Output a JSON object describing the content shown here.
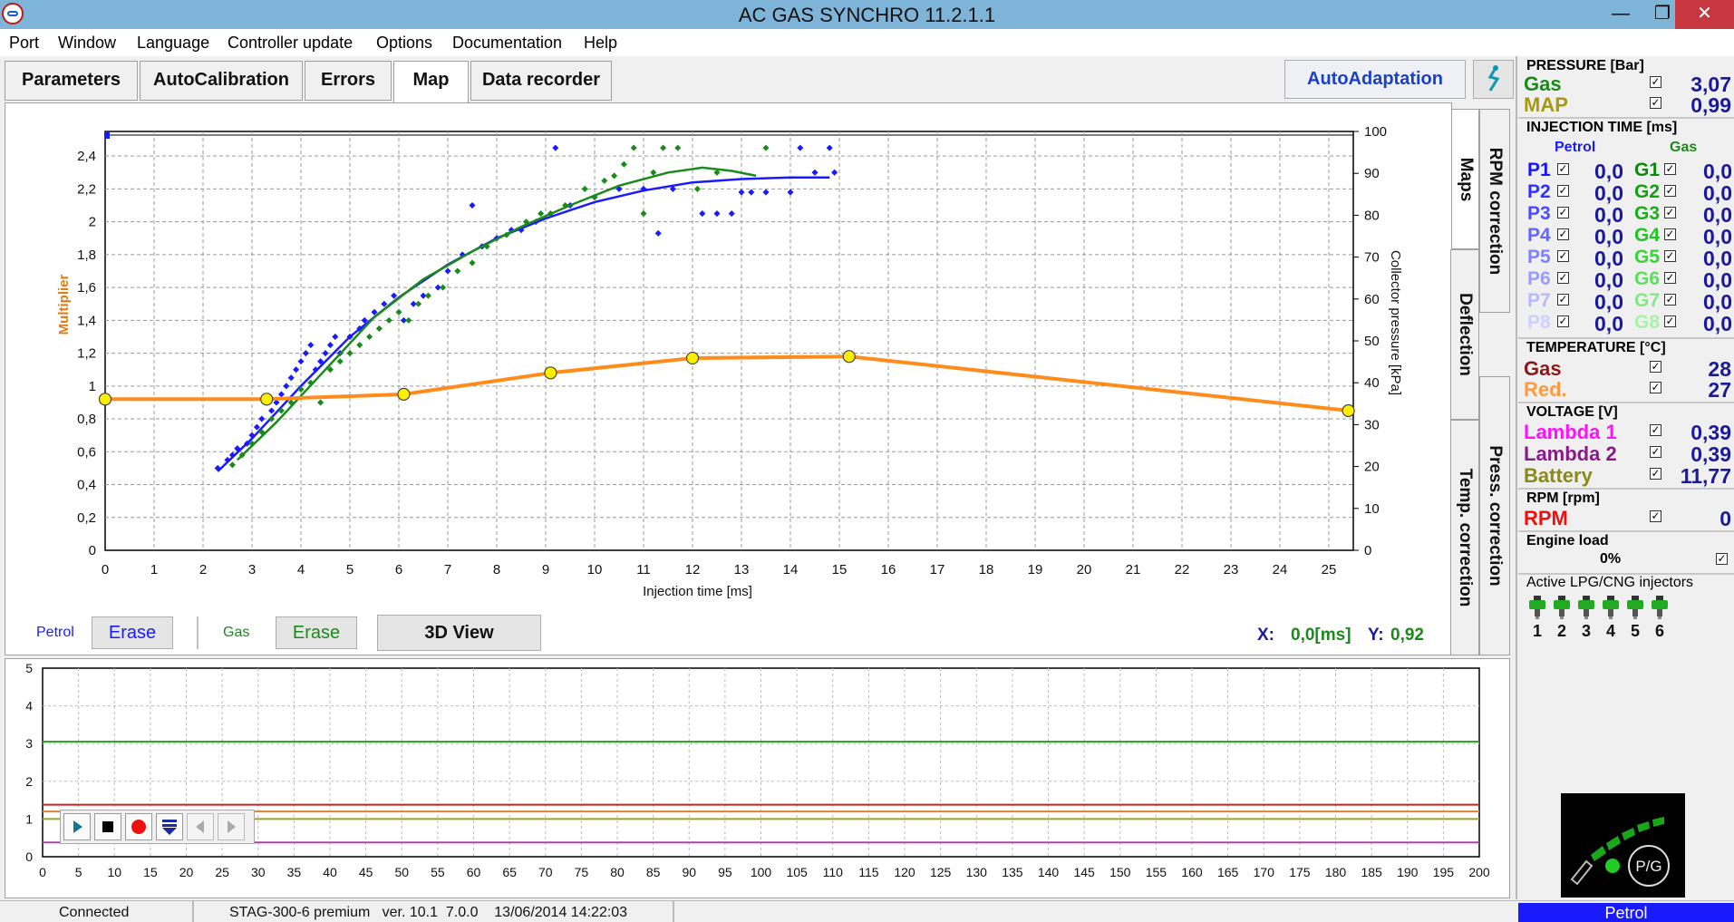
{
  "window": {
    "title": "AC GAS SYNCHRO  11.2.1.1",
    "minimize": "—",
    "maximize": "❐",
    "close": "✕"
  },
  "menu": [
    "Port",
    "Window",
    "Language",
    "Controller update",
    "Options",
    "Documentation",
    "Help"
  ],
  "tabs": {
    "parameters": "Parameters",
    "autocalibration": "AutoCalibration",
    "errors": "Errors",
    "map": "Map",
    "data_recorder": "Data recorder"
  },
  "autoadaptation": "AutoAdaptation",
  "side_tabs": {
    "maps": "Maps",
    "rpm_correction": "RPM correction",
    "deflection": "Deflection",
    "temp_correction": "Temp. correction",
    "press_correction": "Press. correction"
  },
  "map_controls": {
    "petrol_label": "Petrol",
    "petrol_erase": "Erase",
    "gas_label": "Gas",
    "gas_erase": "Erase",
    "view3d": "3D View",
    "x_label": "X:",
    "x_value": "0,0[ms]",
    "y_label": "Y:",
    "y_value": "0,92"
  },
  "pressure": {
    "header": "PRESSURE [Bar]",
    "gas_label": "Gas",
    "gas_value": "3,07",
    "map_label": "MAP",
    "map_value": "0,99"
  },
  "injection": {
    "header": "INJECTION TIME [ms]",
    "petrol_col": "Petrol",
    "gas_col": "Gas",
    "rows": [
      {
        "p": "P1",
        "pv": "0,0",
        "g": "G1",
        "gv": "0,0",
        "pc": "#1515ff",
        "gc": "#0a8a0a"
      },
      {
        "p": "P2",
        "pv": "0,0",
        "g": "G2",
        "gv": "0,0",
        "pc": "#3030ff",
        "gc": "#10a010"
      },
      {
        "p": "P3",
        "pv": "0,0",
        "g": "G3",
        "gv": "0,0",
        "pc": "#4a4aff",
        "gc": "#18b018"
      },
      {
        "p": "P4",
        "pv": "0,0",
        "g": "G4",
        "gv": "0,0",
        "pc": "#6464ff",
        "gc": "#22c422"
      },
      {
        "p": "P5",
        "pv": "0,0",
        "g": "G5",
        "gv": "0,0",
        "pc": "#8080ff",
        "gc": "#38d438"
      },
      {
        "p": "P6",
        "pv": "0,0",
        "g": "G6",
        "gv": "0,0",
        "pc": "#9c9cff",
        "gc": "#5ae05a"
      },
      {
        "p": "P7",
        "pv": "0,0",
        "g": "G7",
        "gv": "0,0",
        "pc": "#b8b8ff",
        "gc": "#80ea80"
      },
      {
        "p": "P8",
        "pv": "0,0",
        "g": "G8",
        "gv": "0,0",
        "pc": "#d0d0ff",
        "gc": "#a8f2a8"
      }
    ]
  },
  "temperature": {
    "header": "TEMPERATURE [°C]",
    "gas_label": "Gas",
    "gas_value": "28",
    "red_label": "Red.",
    "red_value": "27"
  },
  "voltage": {
    "header": "VOLTAGE [V]",
    "l1_label": "Lambda 1",
    "l1_value": "0,39",
    "l2_label": "Lambda 2",
    "l2_value": "0,39",
    "bat_label": "Battery",
    "bat_value": "11,77"
  },
  "rpm": {
    "header": "RPM [rpm]",
    "label": "RPM",
    "value": "0"
  },
  "engine_load": {
    "header": "Engine load",
    "value": "0%"
  },
  "injectors": {
    "header": "Active LPG/CNG injectors",
    "numbers": [
      "1",
      "2",
      "3",
      "4",
      "5",
      "6"
    ]
  },
  "switch": {
    "pg_label": "P/G"
  },
  "status": {
    "connection": "Connected",
    "controller": "STAG-300-6 premium   ver. 10.1  7.0.0    13/06/2014 14:22:03",
    "mode": "Petrol"
  },
  "colors": {
    "petrol": "#1a1aff",
    "gas": "#1a8a1a",
    "map_line": "#ff8c1a",
    "grid": "#999999"
  },
  "chart_data": [
    {
      "type": "scatter",
      "xlabel": "Injection time [ms]",
      "ylabel": "Multiplier",
      "y2label": "Collector pressure [kPa]",
      "xlim": [
        0,
        25.5
      ],
      "ylim": [
        0,
        2.55
      ],
      "y2lim": [
        0,
        100
      ],
      "x_ticks": [
        "0",
        "1",
        "2",
        "3",
        "4",
        "5",
        "6",
        "7",
        "8",
        "9",
        "10",
        "11",
        "12",
        "13",
        "14",
        "15",
        "16",
        "17",
        "18",
        "19",
        "20",
        "21",
        "22",
        "23",
        "24",
        "25"
      ],
      "y_ticks": [
        "0",
        "0,2",
        "0,4",
        "0,6",
        "0,8",
        "1",
        "1,2",
        "1,4",
        "1,6",
        "1,8",
        "2",
        "2,2",
        "2,4"
      ],
      "y2_ticks": [
        "0",
        "10",
        "20",
        "30",
        "40",
        "50",
        "60",
        "70",
        "80",
        "90",
        "100"
      ],
      "map_points": [
        [
          0,
          0.92
        ],
        [
          3.3,
          0.92
        ],
        [
          6.1,
          0.95
        ],
        [
          9.1,
          1.08
        ],
        [
          12,
          1.17
        ],
        [
          15.2,
          1.18
        ],
        [
          25.4,
          0.85
        ]
      ],
      "series": [
        {
          "name": "Petrol",
          "fit": [
            [
              2.3,
              0.48
            ],
            [
              3,
              0.68
            ],
            [
              4,
              1.0
            ],
            [
              5,
              1.3
            ],
            [
              6,
              1.54
            ],
            [
              7,
              1.74
            ],
            [
              8,
              1.9
            ],
            [
              9,
              2.02
            ],
            [
              10,
              2.12
            ],
            [
              11,
              2.19
            ],
            [
              12,
              2.24
            ],
            [
              13,
              2.26
            ],
            [
              14,
              2.27
            ],
            [
              14.8,
              2.27
            ]
          ],
          "points": [
            [
              2.3,
              0.5
            ],
            [
              2.5,
              0.55
            ],
            [
              2.6,
              0.58
            ],
            [
              2.7,
              0.62
            ],
            [
              2.9,
              0.65
            ],
            [
              3.0,
              0.7
            ],
            [
              3.1,
              0.75
            ],
            [
              3.2,
              0.8
            ],
            [
              3.4,
              0.85
            ],
            [
              3.5,
              0.9
            ],
            [
              3.6,
              0.95
            ],
            [
              3.7,
              1.0
            ],
            [
              3.8,
              1.05
            ],
            [
              3.9,
              1.1
            ],
            [
              4.0,
              1.15
            ],
            [
              4.1,
              1.2
            ],
            [
              4.2,
              1.25
            ],
            [
              4.3,
              1.1
            ],
            [
              4.4,
              1.15
            ],
            [
              4.5,
              1.2
            ],
            [
              4.6,
              1.25
            ],
            [
              4.7,
              1.3
            ],
            [
              4.8,
              1.2
            ],
            [
              5.0,
              1.3
            ],
            [
              5.2,
              1.35
            ],
            [
              5.3,
              1.4
            ],
            [
              5.5,
              1.45
            ],
            [
              5.7,
              1.5
            ],
            [
              5.9,
              1.55
            ],
            [
              6.1,
              1.4
            ],
            [
              6.3,
              1.5
            ],
            [
              6.5,
              1.55
            ],
            [
              6.8,
              1.6
            ],
            [
              7.0,
              1.7
            ],
            [
              7.3,
              1.8
            ],
            [
              7.5,
              2.1
            ],
            [
              7.7,
              1.85
            ],
            [
              8.0,
              1.9
            ],
            [
              8.3,
              1.95
            ],
            [
              8.5,
              1.95
            ],
            [
              8.8,
              2.0
            ],
            [
              9.2,
              2.45
            ],
            [
              9.5,
              2.1
            ],
            [
              10,
              2.15
            ],
            [
              10.5,
              2.2
            ],
            [
              11,
              2.2
            ],
            [
              11.3,
              1.93
            ],
            [
              11.6,
              2.2
            ],
            [
              12.2,
              2.05
            ],
            [
              12.5,
              2.05
            ],
            [
              12.8,
              2.05
            ],
            [
              13,
              2.18
            ],
            [
              13.2,
              2.18
            ],
            [
              13.5,
              2.18
            ],
            [
              14,
              2.18
            ],
            [
              14.2,
              2.45
            ],
            [
              14.5,
              2.3
            ],
            [
              14.8,
              2.45
            ],
            [
              14.9,
              2.3
            ]
          ]
        },
        {
          "name": "Gas",
          "fit": [
            [
              2.7,
              0.55
            ],
            [
              3.5,
              0.78
            ],
            [
              4.5,
              1.1
            ],
            [
              5.5,
              1.42
            ],
            [
              6.5,
              1.65
            ],
            [
              7.5,
              1.82
            ],
            [
              8.5,
              1.97
            ],
            [
              9.5,
              2.1
            ],
            [
              10.5,
              2.22
            ],
            [
              11.5,
              2.3
            ],
            [
              12.2,
              2.33
            ],
            [
              12.8,
              2.31
            ],
            [
              13.3,
              2.28
            ]
          ],
          "points": [
            [
              2.6,
              0.52
            ],
            [
              2.8,
              0.58
            ],
            [
              3.0,
              0.65
            ],
            [
              3.2,
              0.72
            ],
            [
              3.4,
              0.8
            ],
            [
              3.6,
              0.85
            ],
            [
              3.8,
              0.9
            ],
            [
              4.0,
              0.98
            ],
            [
              4.2,
              1.02
            ],
            [
              4.4,
              0.9
            ],
            [
              4.6,
              1.1
            ],
            [
              4.8,
              1.15
            ],
            [
              5.0,
              1.2
            ],
            [
              5.2,
              1.25
            ],
            [
              5.4,
              1.3
            ],
            [
              5.6,
              1.35
            ],
            [
              5.8,
              1.4
            ],
            [
              6.0,
              1.45
            ],
            [
              6.2,
              1.4
            ],
            [
              6.4,
              1.5
            ],
            [
              6.6,
              1.55
            ],
            [
              6.9,
              1.6
            ],
            [
              7.2,
              1.7
            ],
            [
              7.5,
              1.75
            ],
            [
              7.8,
              1.85
            ],
            [
              8.2,
              1.92
            ],
            [
              8.6,
              2.0
            ],
            [
              8.9,
              2.05
            ],
            [
              9.1,
              2.05
            ],
            [
              9.4,
              2.1
            ],
            [
              9.8,
              2.2
            ],
            [
              10.0,
              2.15
            ],
            [
              10.2,
              2.25
            ],
            [
              10.4,
              2.28
            ],
            [
              10.6,
              2.35
            ],
            [
              10.8,
              2.45
            ],
            [
              11.0,
              2.05
            ],
            [
              11.2,
              2.3
            ],
            [
              11.4,
              2.45
            ],
            [
              11.7,
              2.45
            ],
            [
              12.1,
              2.2
            ],
            [
              12.5,
              2.3
            ],
            [
              13.5,
              2.45
            ]
          ]
        }
      ]
    },
    {
      "type": "line",
      "xlim": [
        0,
        200
      ],
      "ylim": [
        0,
        5
      ],
      "x_ticks": [
        "0",
        "5",
        "10",
        "15",
        "20",
        "25",
        "30",
        "35",
        "40",
        "45",
        "50",
        "55",
        "60",
        "65",
        "70",
        "75",
        "80",
        "85",
        "90",
        "95",
        "100",
        "105",
        "110",
        "115",
        "120",
        "125",
        "130",
        "135",
        "140",
        "145",
        "150",
        "155",
        "160",
        "165",
        "170",
        "175",
        "180",
        "185",
        "190",
        "195",
        "200"
      ],
      "y_ticks": [
        "0",
        "1",
        "2",
        "3",
        "4",
        "5"
      ],
      "series": [
        {
          "color": "#2a9a2a",
          "value": 3.05
        },
        {
          "color": "#cc2020",
          "value": 1.38
        },
        {
          "color": "#e08030",
          "value": 1.2
        },
        {
          "color": "#a0a020",
          "value": 1.0
        },
        {
          "color": "#b040b0",
          "value": 0.38
        }
      ]
    }
  ]
}
